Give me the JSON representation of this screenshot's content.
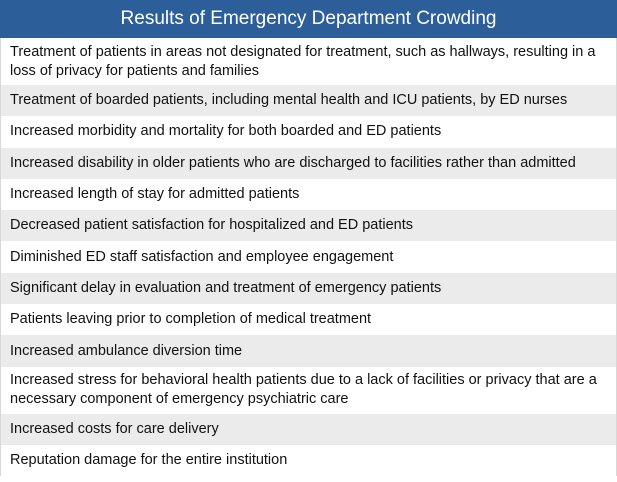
{
  "table": {
    "title": "Results of Emergency Department Crowding",
    "header_color": "#2c5f9a",
    "rows": [
      "Treatment of patients in areas not designated for treatment, such as hallways, resulting in a loss of privacy for patients and families",
      "Treatment of boarded patients, including mental health and ICU patients, by ED nurses",
      "Increased morbidity and mortality for both boarded and ED patients",
      "Increased disability in older patients who are discharged to facilities rather than admitted",
      "Increased length of stay for admitted patients",
      "Decreased patient satisfaction for hospitalized and ED patients",
      "Diminished ED staff satisfaction and employee engagement",
      "Significant delay in evaluation and treatment of emergency patients",
      "Patients leaving prior to completion of medical treatment",
      "Increased ambulance diversion time",
      "Increased stress for behavioral health patients due to a lack of facilities or privacy that are a necessary component of emergency psychiatric care",
      "Increased costs for care delivery",
      "Reputation damage for the entire institution"
    ]
  }
}
